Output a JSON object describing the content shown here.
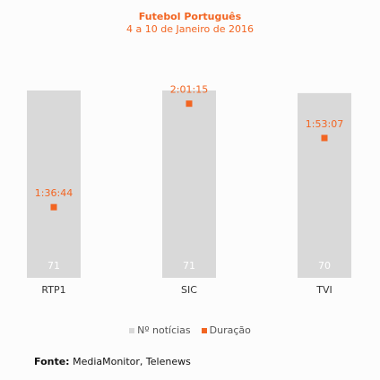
{
  "chart_data": {
    "type": "bar",
    "title": "Futebol Português",
    "subtitle": "4 a 10 de Janeiro de 2016",
    "categories": [
      "RTP1",
      "SIC",
      "TVI"
    ],
    "series": [
      {
        "name": "Nº notícias",
        "type": "bar",
        "values": [
          71,
          71,
          70
        ],
        "labels": [
          "71",
          "71",
          "70"
        ],
        "color": "#d9d9d9"
      },
      {
        "name": "Duração",
        "type": "scatter",
        "values": [
          "1:36:44",
          "2:01:15",
          "1:53:07"
        ],
        "labels": [
          "1:36:44",
          "2:01:15",
          "1:53:07"
        ],
        "color": "#f26522"
      }
    ],
    "bar_ylim": [
      0,
      72
    ],
    "duration_ylim": [
      "1:20:00",
      "2:05:00"
    ],
    "legend_position": "bottom",
    "grid": false
  },
  "source": {
    "label": "Fonte:",
    "text": "MediaMonitor, Telenews"
  }
}
